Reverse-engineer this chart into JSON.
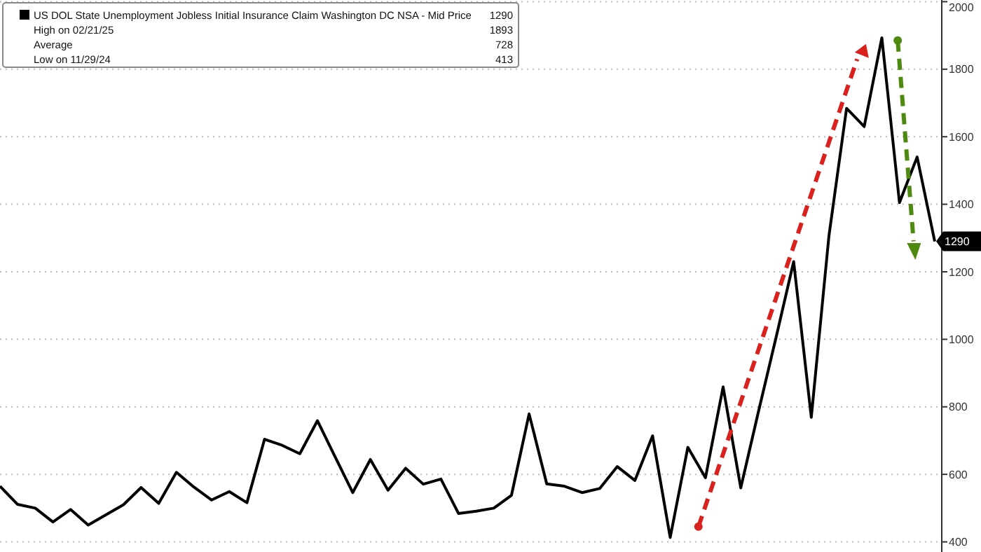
{
  "chart_data": {
    "type": "line",
    "categories": [
      null,
      null,
      null,
      null,
      null,
      null,
      null,
      null,
      null,
      null,
      null,
      null,
      null,
      null,
      null,
      null,
      null,
      null,
      null,
      null,
      null,
      null,
      null,
      null,
      null,
      null,
      null,
      null,
      null,
      null,
      null,
      null,
      null,
      null,
      null,
      null,
      null,
      null,
      null,
      null,
      null,
      null,
      null,
      null,
      null,
      null,
      null,
      null,
      null,
      null,
      null,
      null,
      null,
      null
    ],
    "series": [
      {
        "name": "US DOL State Unemployment Jobless Initial Insurance Claim Washington DC NSA - Mid Price",
        "color": "#000000",
        "values": [
          565,
          511,
          500,
          459,
          496,
          450,
          480,
          510,
          561,
          514,
          606,
          562,
          524,
          549,
          516,
          704,
          686,
          661,
          759,
          652,
          546,
          644,
          553,
          618,
          571,
          586,
          484,
          491,
          500,
          538,
          779,
          572,
          565,
          546,
          558,
          623,
          582,
          714,
          413,
          680,
          590,
          859,
          560,
          785,
          1005,
          1230,
          769,
          1306,
          1684,
          1630,
          1893,
          1405,
          1540,
          1290
        ],
        "value_labels": [
          null,
          null,
          null,
          null,
          null,
          null,
          null,
          null,
          null,
          null,
          null,
          null,
          null,
          null,
          null,
          null,
          null,
          null,
          null,
          null,
          null,
          null,
          null,
          null,
          null,
          null,
          null,
          null,
          null,
          null,
          null,
          null,
          null,
          null,
          null,
          null,
          null,
          null,
          null,
          null,
          null,
          null,
          null,
          null,
          null,
          null,
          null,
          null,
          null,
          null,
          null,
          null,
          null,
          "1290"
        ]
      }
    ],
    "annotations": [
      "1290",
      "High on 02/21/25",
      "1893",
      "Average",
      "728",
      "Low on 11/29/24",
      "413"
    ],
    "ylim": [
      370,
      2005
    ],
    "yticks": [
      400,
      600,
      800,
      1000,
      1200,
      1400,
      1600,
      1800,
      2000
    ],
    "grid": "y",
    "legend": "top left",
    "tick_labels": "y",
    "line_style": "solid",
    "marker": "none"
  }
}
